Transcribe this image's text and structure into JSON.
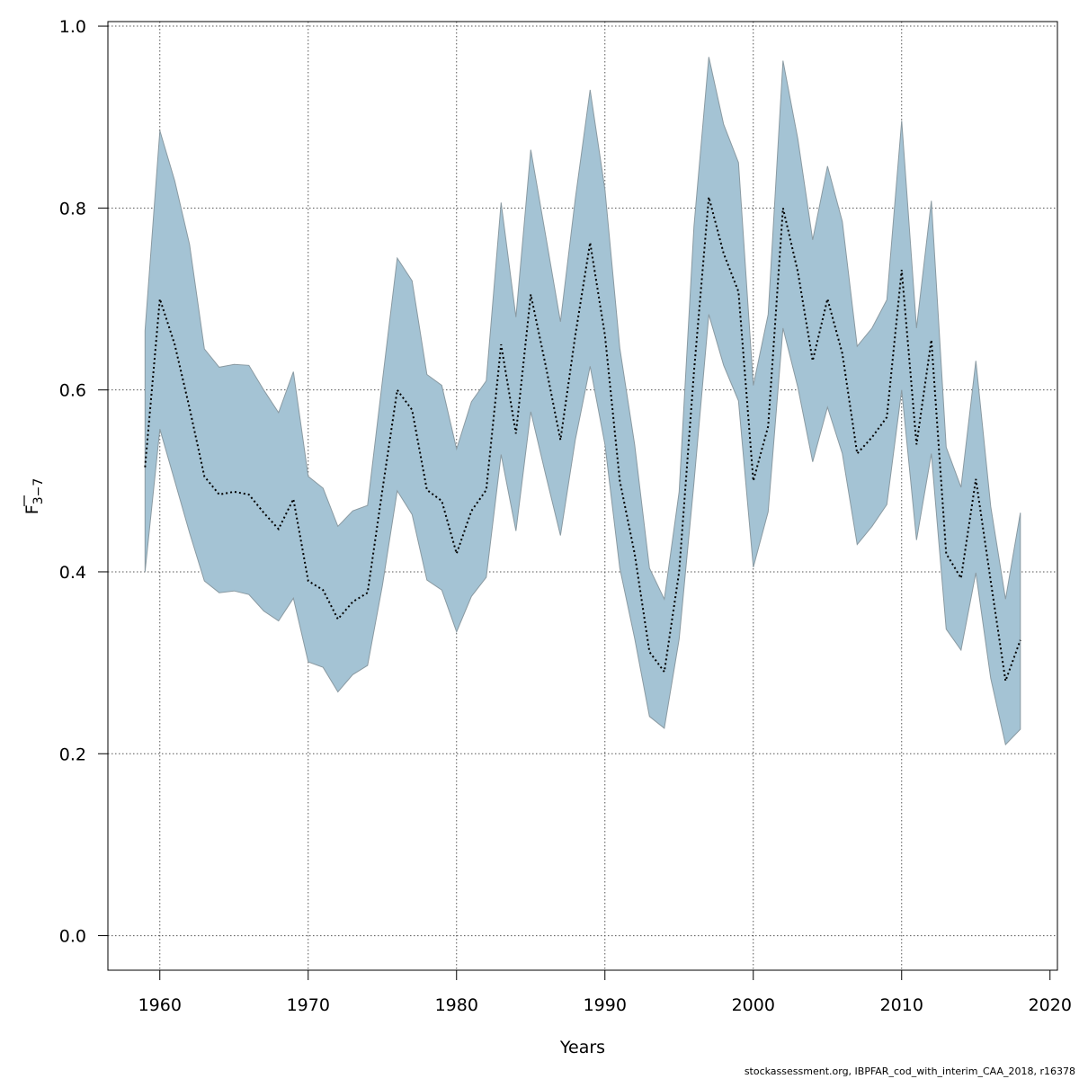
{
  "chart_data": {
    "type": "area",
    "xlabel": "Years",
    "ylabel_main": "F",
    "ylabel_sub": "3−7",
    "xlim": [
      1956.5,
      2020.5
    ],
    "ylim": [
      -0.038,
      1.005
    ],
    "x_ticks": [
      1960,
      1970,
      1980,
      1990,
      2000,
      2010,
      2020
    ],
    "y_ticks": [
      0.0,
      0.2,
      0.4,
      0.6,
      0.8,
      1.0
    ],
    "y_tick_labels": [
      "0.0",
      "0.2",
      "0.4",
      "0.6",
      "0.8",
      "1.0"
    ],
    "grid": true,
    "band_color": "#a4c3d4",
    "band_edge_color": "#8a9aa2",
    "line_color": "#000000",
    "years": [
      1959,
      1960,
      1961,
      1962,
      1963,
      1964,
      1965,
      1966,
      1967,
      1968,
      1969,
      1970,
      1971,
      1972,
      1973,
      1974,
      1975,
      1976,
      1977,
      1978,
      1979,
      1980,
      1981,
      1982,
      1983,
      1984,
      1985,
      1986,
      1987,
      1988,
      1989,
      1990,
      1991,
      1992,
      1993,
      1994,
      1995,
      1996,
      1997,
      1998,
      1999,
      2000,
      2001,
      2002,
      2003,
      2004,
      2005,
      2006,
      2007,
      2008,
      2009,
      2010,
      2011,
      2012,
      2013,
      2014,
      2015,
      2016,
      2017,
      2018
    ],
    "series": [
      {
        "values": [
          0.515,
          0.7,
          0.65,
          0.58,
          0.505,
          0.485,
          0.488,
          0.485,
          0.465,
          0.447,
          0.48,
          0.39,
          0.38,
          0.348,
          0.367,
          0.377,
          0.49,
          0.6,
          0.578,
          0.49,
          0.478,
          0.42,
          0.467,
          0.49,
          0.65,
          0.552,
          0.705,
          0.627,
          0.545,
          0.66,
          0.762,
          0.66,
          0.5,
          0.42,
          0.312,
          0.29,
          0.4,
          0.62,
          0.812,
          0.75,
          0.708,
          0.5,
          0.56,
          0.8,
          0.73,
          0.632,
          0.7,
          0.64,
          0.53,
          0.548,
          0.57,
          0.732,
          0.54,
          0.655,
          0.42,
          0.393,
          0.502,
          0.39,
          0.28,
          0.325
        ]
      },
      {
        "values": [
          0.665,
          0.885,
          0.83,
          0.76,
          0.645,
          0.625,
          0.628,
          0.627,
          0.6,
          0.575,
          0.62,
          0.505,
          0.492,
          0.45,
          0.467,
          0.473,
          0.61,
          0.745,
          0.72,
          0.617,
          0.605,
          0.535,
          0.587,
          0.61,
          0.806,
          0.68,
          0.864,
          0.77,
          0.675,
          0.81,
          0.93,
          0.82,
          0.646,
          0.54,
          0.404,
          0.37,
          0.488,
          0.78,
          0.966,
          0.892,
          0.85,
          0.605,
          0.683,
          0.962,
          0.876,
          0.765,
          0.846,
          0.785,
          0.648,
          0.668,
          0.699,
          0.896,
          0.668,
          0.808,
          0.537,
          0.493,
          0.632,
          0.472,
          0.37,
          0.465
        ]
      },
      {
        "values": [
          0.4,
          0.557,
          0.5,
          0.443,
          0.39,
          0.377,
          0.379,
          0.375,
          0.357,
          0.346,
          0.371,
          0.301,
          0.295,
          0.268,
          0.287,
          0.297,
          0.385,
          0.489,
          0.463,
          0.391,
          0.38,
          0.334,
          0.373,
          0.394,
          0.529,
          0.445,
          0.576,
          0.507,
          0.44,
          0.545,
          0.626,
          0.54,
          0.404,
          0.327,
          0.241,
          0.228,
          0.326,
          0.498,
          0.683,
          0.627,
          0.588,
          0.405,
          0.466,
          0.668,
          0.603,
          0.521,
          0.581,
          0.53,
          0.43,
          0.45,
          0.474,
          0.6,
          0.435,
          0.53,
          0.337,
          0.314,
          0.399,
          0.283,
          0.21,
          0.227
        ]
      }
    ]
  },
  "footer": "stockassessment.org, IBPFAR_cod_with_interim_CAA_2018, r16378"
}
